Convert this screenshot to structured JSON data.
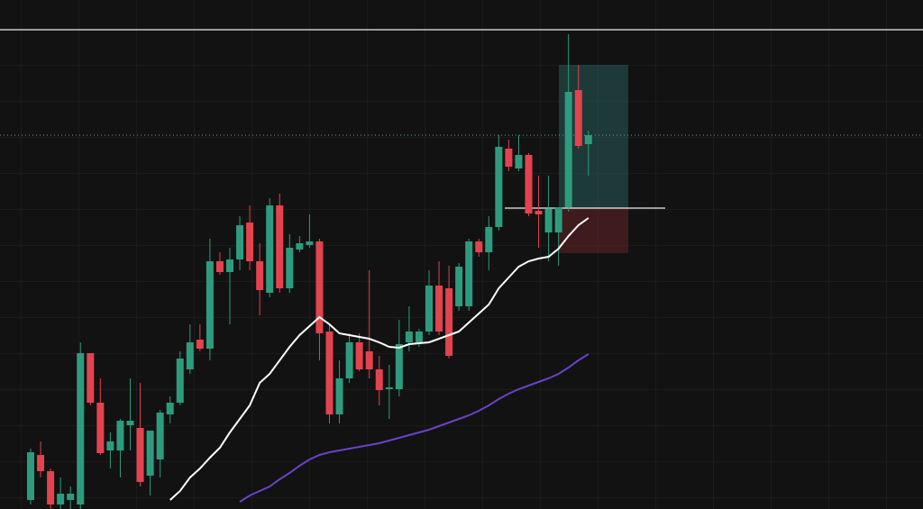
{
  "chart_data": {
    "type": "candlestick",
    "ylim": [
      0,
      565
    ],
    "up_color": "#2f9b7e",
    "down_color": "#e2434f",
    "open": [
      10,
      60,
      42,
      5,
      10,
      5,
      173,
      118,
      65,
      65,
      93,
      90,
      37,
      55,
      105,
      118,
      155,
      188,
      178,
      275,
      263,
      277,
      318,
      275,
      240,
      337,
      245,
      288,
      293,
      297,
      197,
      105,
      145,
      185,
      175,
      155,
      133,
      133,
      185,
      185,
      197,
      248,
      245,
      225,
      225,
      297,
      285,
      313,
      400,
      378,
      393,
      331,
      307,
      307,
      335,
      465,
      405
    ],
    "high": [
      67,
      75,
      45,
      35,
      25,
      185,
      173,
      145,
      85,
      100,
      145,
      140,
      87,
      110,
      125,
      175,
      205,
      205,
      300,
      285,
      290,
      325,
      337,
      295,
      345,
      350,
      305,
      303,
      327,
      300,
      205,
      165,
      195,
      195,
      265,
      170,
      160,
      210,
      225,
      200,
      265,
      275,
      270,
      273,
      300,
      300,
      325,
      415,
      410,
      415,
      395,
      370,
      370,
      335,
      527,
      493,
      420
    ],
    "low": [
      5,
      35,
      0,
      0,
      0,
      0,
      115,
      60,
      45,
      35,
      65,
      25,
      15,
      35,
      95,
      115,
      150,
      175,
      165,
      260,
      205,
      265,
      265,
      215,
      235,
      240,
      240,
      285,
      290,
      165,
      95,
      95,
      140,
      153,
      145,
      115,
      100,
      125,
      175,
      180,
      193,
      193,
      167,
      220,
      220,
      280,
      265,
      309,
      375,
      375,
      325,
      290,
      275,
      270,
      330,
      400,
      370
    ],
    "close": [
      63,
      42,
      5,
      17,
      17,
      173,
      118,
      62,
      75,
      98,
      98,
      30,
      87,
      107,
      118,
      167,
      185,
      178,
      275,
      263,
      277,
      315,
      275,
      243,
      337,
      245,
      290,
      295,
      297,
      195,
      105,
      145,
      185,
      155,
      155,
      132,
      135,
      183,
      197,
      197,
      248,
      197,
      170,
      269,
      297,
      285,
      313,
      402,
      380,
      393,
      328,
      327,
      333,
      335,
      463,
      403,
      415
    ],
    "overlays": [
      {
        "color": "#ffffff",
        "values": [
          null,
          null,
          null,
          null,
          null,
          null,
          null,
          null,
          null,
          null,
          null,
          null,
          null,
          null,
          10,
          20,
          35,
          45,
          57,
          68,
          85,
          100,
          115,
          140,
          150,
          165,
          180,
          193,
          203,
          213,
          205,
          195,
          193,
          191,
          189,
          185,
          180,
          179,
          183,
          184,
          185,
          189,
          193,
          197,
          207,
          217,
          227,
          245,
          257,
          269,
          275,
          278,
          280,
          289,
          303,
          315,
          323
        ]
      },
      {
        "color": "#6a42c8",
        "values": [
          null,
          null,
          null,
          null,
          null,
          null,
          null,
          null,
          null,
          null,
          null,
          null,
          null,
          null,
          null,
          null,
          null,
          null,
          null,
          null,
          null,
          8,
          15,
          20,
          25,
          33,
          40,
          48,
          55,
          60,
          63,
          65,
          67,
          69,
          71,
          73,
          76,
          79,
          82,
          85,
          88,
          92,
          96,
          100,
          104,
          109,
          115,
          122,
          128,
          133,
          137,
          141,
          145,
          150,
          157,
          165,
          172
        ]
      }
    ],
    "levels": {
      "top_line": 532,
      "dotted_line": 415,
      "entry_line": 334
    },
    "position": {
      "entry": 334,
      "target": 493,
      "stop": 284
    }
  }
}
